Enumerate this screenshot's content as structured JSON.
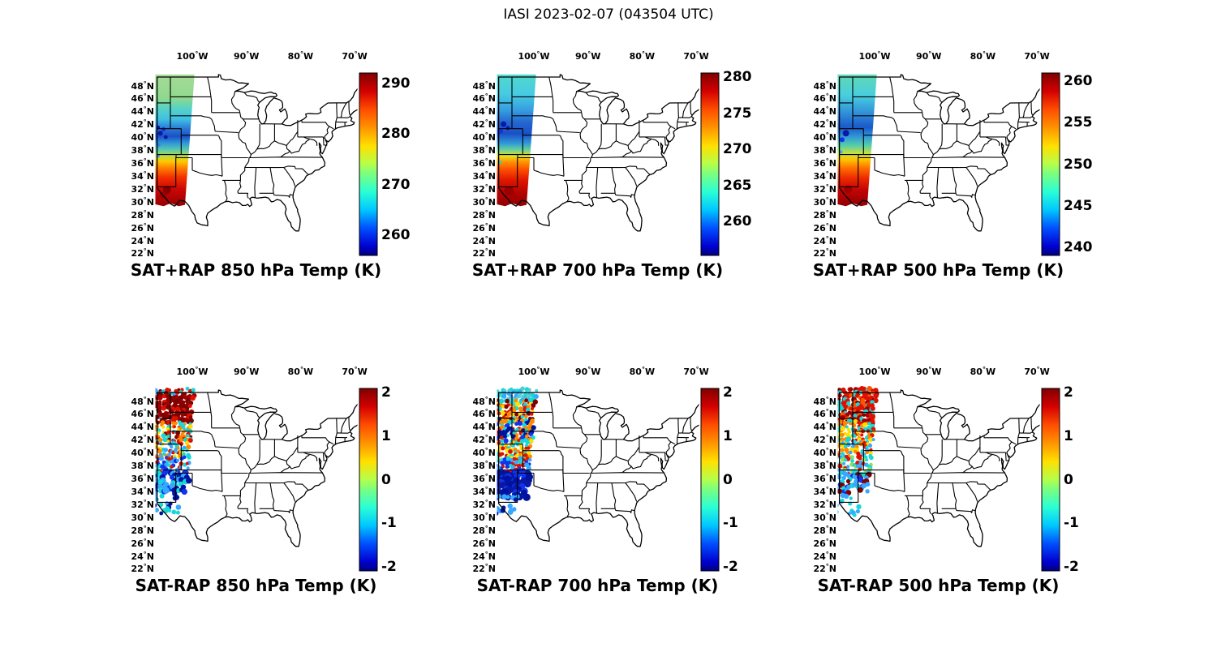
{
  "figure": {
    "title": "IASI 2023-02-07 (043504 UTC)"
  },
  "axes": {
    "lon_ticks": [
      "100",
      "90",
      "80",
      "70"
    ],
    "lon_hemisphere": "W",
    "lat_ticks": [
      "48",
      "46",
      "44",
      "42",
      "40",
      "38",
      "36",
      "34",
      "32",
      "30",
      "28",
      "26",
      "24",
      "22"
    ],
    "lat_hemisphere": "N",
    "degree_symbol": "°"
  },
  "colormap": "jet",
  "chart_data": [
    {
      "id": "sat_plus_rap_850",
      "type": "heatmap",
      "title": "SAT+RAP 850 hPa Temp (K)",
      "dataset": "SAT+RAP",
      "level_hPa": 850,
      "quantity": "Temp",
      "unit": "K",
      "extent_lon": [
        -106.5,
        -69.5
      ],
      "extent_lat": [
        21.5,
        49.6
      ],
      "colorbar": {
        "vmin": 256,
        "vmax": 292,
        "ticks": [
          290,
          280,
          270,
          260
        ]
      },
      "swath": {
        "gradient": [
          [
            0,
            "#a6da98"
          ],
          [
            0.18,
            "#8fd98c"
          ],
          [
            0.26,
            "#55d2c8"
          ],
          [
            0.34,
            "#3fc0e4"
          ],
          [
            0.41,
            "#2a7ad4"
          ],
          [
            0.47,
            "#1b50c8"
          ],
          [
            0.52,
            "#2f96d8"
          ],
          [
            0.57,
            "#55c8b4"
          ],
          [
            0.62,
            "#b8dc40"
          ],
          [
            0.66,
            "#ffc800"
          ],
          [
            0.71,
            "#ff8000"
          ],
          [
            0.78,
            "#f23000"
          ],
          [
            0.87,
            "#cc0606"
          ],
          [
            1,
            "#960000"
          ]
        ],
        "blobs": [
          [
            -106.3,
            41.2,
            2.2,
            "#0a18a8"
          ],
          [
            -105.9,
            40.3,
            3,
            "#0a18a8"
          ],
          [
            -105.3,
            40.9,
            2.6,
            "#1133ee"
          ],
          [
            -104.9,
            39.7,
            2.4,
            "#0a18a8"
          ],
          [
            -106.2,
            38.5,
            2.2,
            "#2f86d8"
          ],
          [
            -106.3,
            36.8,
            2,
            "#35a8ff"
          ],
          [
            -104.7,
            31.5,
            5,
            "#8a0000"
          ],
          [
            -105.4,
            30.7,
            4,
            "#9a0000"
          ]
        ]
      }
    },
    {
      "id": "sat_plus_rap_700",
      "type": "heatmap",
      "title": "SAT+RAP 700 hPa Temp (K)",
      "dataset": "SAT+RAP",
      "level_hPa": 700,
      "quantity": "Temp",
      "unit": "K",
      "extent_lon": [
        -106.5,
        -69.5
      ],
      "extent_lat": [
        21.5,
        49.6
      ],
      "colorbar": {
        "vmin": 255.3,
        "vmax": 280.6,
        "ticks": [
          280,
          275,
          270,
          265,
          260
        ]
      },
      "swath": {
        "gradient": [
          [
            0,
            "#52d8cc"
          ],
          [
            0.15,
            "#46cbe2"
          ],
          [
            0.27,
            "#369ee0"
          ],
          [
            0.36,
            "#2468d0"
          ],
          [
            0.45,
            "#1b50c8"
          ],
          [
            0.52,
            "#2f96d8"
          ],
          [
            0.57,
            "#62d0a0"
          ],
          [
            0.62,
            "#e8e020"
          ],
          [
            0.66,
            "#ff9800"
          ],
          [
            0.72,
            "#ff5000"
          ],
          [
            0.8,
            "#e01800"
          ],
          [
            0.9,
            "#b40202"
          ],
          [
            1,
            "#8f0000"
          ]
        ],
        "blobs": [
          [
            -105.6,
            41.7,
            3.5,
            "#0a18a8"
          ],
          [
            -106.1,
            40.6,
            3,
            "#1133ee"
          ],
          [
            -104.8,
            41.1,
            2.5,
            "#0a18a8"
          ],
          [
            -106.3,
            35.8,
            2,
            "#17d8d8"
          ],
          [
            -104.6,
            31.3,
            6,
            "#9a0000"
          ],
          [
            -103.9,
            30.5,
            4,
            "#a80000"
          ],
          [
            -105.8,
            30.9,
            4,
            "#b00202"
          ]
        ]
      }
    },
    {
      "id": "sat_plus_rap_500",
      "type": "heatmap",
      "title": "SAT+RAP 500 hPa Temp (K)",
      "dataset": "SAT+RAP",
      "level_hPa": 500,
      "quantity": "Temp",
      "unit": "K",
      "extent_lon": [
        -106.5,
        -69.5
      ],
      "extent_lat": [
        21.5,
        49.6
      ],
      "colorbar": {
        "vmin": 239,
        "vmax": 261,
        "ticks": [
          260,
          255,
          250,
          245,
          240
        ]
      },
      "swath": {
        "gradient": [
          [
            0,
            "#62d8b4"
          ],
          [
            0.16,
            "#48cede"
          ],
          [
            0.3,
            "#2f8cd8"
          ],
          [
            0.4,
            "#1b58c8"
          ],
          [
            0.47,
            "#2f96d8"
          ],
          [
            0.54,
            "#57cfa8"
          ],
          [
            0.6,
            "#c8e040"
          ],
          [
            0.65,
            "#ffc000"
          ],
          [
            0.71,
            "#ff7000"
          ],
          [
            0.79,
            "#ec2800"
          ],
          [
            0.88,
            "#c00404"
          ],
          [
            1,
            "#900000"
          ]
        ],
        "blobs": [
          [
            -105.3,
            40.3,
            4,
            "#0a18a8"
          ],
          [
            -106.0,
            39.3,
            3,
            "#1133ee"
          ],
          [
            -104.7,
            41.2,
            2.5,
            "#1b60cc"
          ],
          [
            -106.2,
            37.4,
            2,
            "#35a8ff"
          ],
          [
            -104.9,
            31.6,
            5,
            "#a00000"
          ]
        ]
      }
    },
    {
      "id": "sat_minus_rap_850",
      "type": "scatter",
      "title": "SAT-RAP 850 hPa Temp (K)",
      "dataset": "SAT-RAP",
      "level_hPa": 850,
      "quantity": "Temp difference",
      "unit": "K",
      "extent_lon": [
        -106.5,
        -69.5
      ],
      "extent_lat": [
        21.5,
        49.6
      ],
      "colorbar": {
        "vmin": -2.1,
        "vmax": 2.1,
        "ticks": [
          2,
          1,
          0,
          -1,
          -2
        ]
      },
      "swath": {
        "bands": [
          {
            "lat": [
              49.4,
              48.5
            ],
            "palette": [
              "#17d8d8",
              "#dd1100",
              "#7f0000",
              "#35a8ff"
            ],
            "density": 0.8,
            "size": 2.1
          },
          {
            "lat": [
              48.5,
              44.2
            ],
            "palette": [
              "#7f0000",
              "#7f0000",
              "#8f0000",
              "#a40000",
              "#dd1100"
            ],
            "density": 0.95,
            "size": 2.6
          },
          {
            "lat": [
              44.2,
              41.5
            ],
            "palette": [
              "#dd1100",
              "#ff8800",
              "#17d8d8",
              "#7f0000",
              "#ffe000"
            ],
            "density": 0.85,
            "size": 2.2
          },
          {
            "lat": [
              41.5,
              38.8
            ],
            "palette": [
              "#17d8d8",
              "#dd1100",
              "#ffe000",
              "#35a8ff",
              "#ff8800"
            ],
            "density": 0.85,
            "size": 2.2
          },
          {
            "lat": [
              38.8,
              36.3
            ],
            "palette": [
              "#17d8d8",
              "#35a8ff",
              "#dd1100",
              "#1133ee"
            ],
            "density": 0.8,
            "size": 2.2
          },
          {
            "lat": [
              36.3,
              33.4
            ],
            "palette": [
              "#00139f",
              "#1133ee",
              "#35a8ff",
              "#17d8d8",
              "#00139f"
            ],
            "density": 0.7,
            "size": 3.4
          },
          {
            "lat": [
              33.4,
              30.2
            ],
            "palette": [
              "#35a8ff",
              "#17d8d8",
              "#00139f"
            ],
            "density": 0.3,
            "size": 2.6,
            "lon_max": -102.5
          }
        ]
      }
    },
    {
      "id": "sat_minus_rap_700",
      "type": "scatter",
      "title": "SAT-RAP 700 hPa Temp (K)",
      "dataset": "SAT-RAP",
      "level_hPa": 700,
      "quantity": "Temp difference",
      "unit": "K",
      "extent_lon": [
        -106.5,
        -69.5
      ],
      "extent_lat": [
        21.5,
        49.6
      ],
      "colorbar": {
        "vmin": -2.1,
        "vmax": 2.1,
        "ticks": [
          2,
          1,
          0,
          -1,
          -2
        ]
      },
      "swath": {
        "bands": [
          {
            "lat": [
              49.4,
              47.6
            ],
            "palette": [
              "#17d8d8",
              "#35a8ff",
              "#4fd0d0"
            ],
            "density": 0.85,
            "size": 2.2
          },
          {
            "lat": [
              47.6,
              44.5
            ],
            "palette": [
              "#dd1100",
              "#ff8800",
              "#17d8d8",
              "#7f0000",
              "#ffe000"
            ],
            "density": 0.9,
            "size": 2.4
          },
          {
            "lat": [
              44.5,
              41.3
            ],
            "palette": [
              "#00139f",
              "#1133ee",
              "#dd1100",
              "#ff8800",
              "#17d8d8"
            ],
            "density": 0.85,
            "size": 2.4
          },
          {
            "lat": [
              41.3,
              38.6
            ],
            "palette": [
              "#ff8800",
              "#dd1100",
              "#ffe000",
              "#17d8d8"
            ],
            "density": 0.85,
            "size": 2.2
          },
          {
            "lat": [
              38.6,
              36.4
            ],
            "palette": [
              "#17d8d8",
              "#35a8ff",
              "#dd1100",
              "#1133ee"
            ],
            "density": 0.8,
            "size": 2.2
          },
          {
            "lat": [
              36.4,
              32.8
            ],
            "palette": [
              "#00139f",
              "#00139f",
              "#1133ee",
              "#0a18a8"
            ],
            "density": 0.75,
            "size": 4.0
          },
          {
            "lat": [
              32.8,
              30.2
            ],
            "palette": [
              "#00139f",
              "#35a8ff"
            ],
            "density": 0.25,
            "size": 2.6,
            "lon_max": -103
          }
        ]
      }
    },
    {
      "id": "sat_minus_rap_500",
      "type": "scatter",
      "title": "SAT-RAP 500 hPa Temp (K)",
      "dataset": "SAT-RAP",
      "level_hPa": 500,
      "quantity": "Temp difference",
      "unit": "K",
      "extent_lon": [
        -106.5,
        -69.5
      ],
      "extent_lat": [
        21.5,
        49.6
      ],
      "colorbar": {
        "vmin": -2.1,
        "vmax": 2.1,
        "ticks": [
          2,
          1,
          0,
          -1,
          -2
        ]
      },
      "swath": {
        "bands": [
          {
            "lat": [
              49.4,
              44.3
            ],
            "palette": [
              "#a40000",
              "#dd1100",
              "#7f0000",
              "#dd1100",
              "#ff5500",
              "#17d8d8"
            ],
            "density": 0.95,
            "size": 2.6
          },
          {
            "lat": [
              44.3,
              41.6
            ],
            "palette": [
              "#dd1100",
              "#ff8800",
              "#17d8d8",
              "#ffe000"
            ],
            "density": 0.85,
            "size": 2.2
          },
          {
            "lat": [
              41.6,
              38.9
            ],
            "palette": [
              "#ff8800",
              "#ffe000",
              "#dd1100",
              "#17d8d8",
              "#35a8ff"
            ],
            "density": 0.85,
            "size": 2.2
          },
          {
            "lat": [
              38.9,
              36.2
            ],
            "palette": [
              "#17d8d8",
              "#8ce05a",
              "#35a8ff",
              "#dd1100"
            ],
            "density": 0.8,
            "size": 2.2
          },
          {
            "lat": [
              36.2,
              33.2
            ],
            "palette": [
              "#35a8ff",
              "#17d8d8",
              "#1133ee",
              "#7f0000"
            ],
            "density": 0.6,
            "size": 2.8
          },
          {
            "lat": [
              33.2,
              30.2
            ],
            "palette": [
              "#17d8d8",
              "#35a8ff"
            ],
            "density": 0.25,
            "size": 2.4,
            "lon_max": -103
          }
        ]
      }
    }
  ]
}
